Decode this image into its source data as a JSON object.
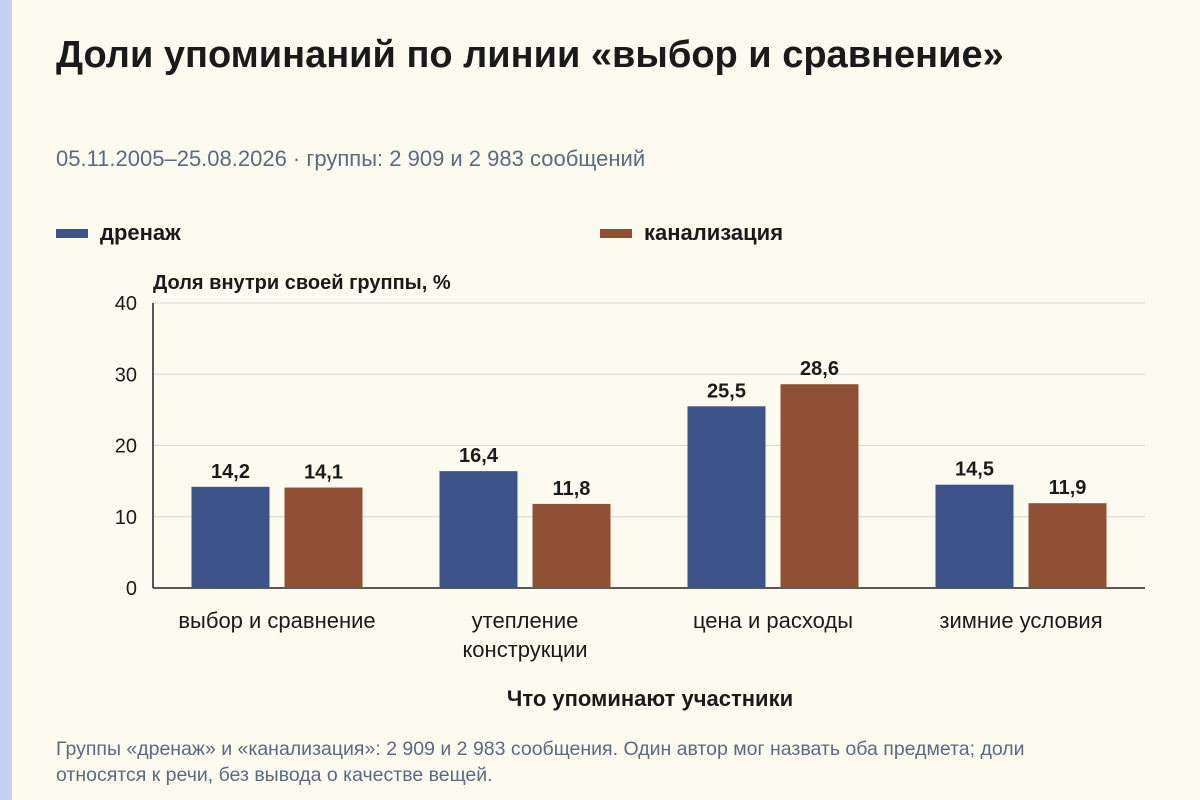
{
  "title": "Доли упоминаний по линии «выбор и сравнение»",
  "subtitle": "05.11.2005–25.08.2026 · группы: 2 909 и 2 983 сообщений",
  "footnote": "Группы «дренаж» и «канализация»: 2 909 и 2 983 сообщения. Один автор мог назвать оба предмета; доли относятся к речи, без вывода о качестве вещей.",
  "colors": {
    "background": "#fdfbf0",
    "series_1": "#3d5389",
    "series_2": "#8e4f35",
    "grid": "#d6d6d6",
    "text": "#1a1a1a"
  },
  "chart_data": {
    "type": "bar",
    "xlabel": "Что упоминают участники",
    "ylabel": "Доля внутри своей группы, %",
    "ylim": [
      0,
      40
    ],
    "yticks": [
      0,
      10,
      20,
      30,
      40
    ],
    "grid": true,
    "legend_position": "top",
    "categories": [
      [
        "выбор и сравнение"
      ],
      [
        "утепление",
        "конструкции"
      ],
      [
        "цена и расходы"
      ],
      [
        "зимние условия"
      ]
    ],
    "series": [
      {
        "name": "дренаж",
        "values": [
          14.2,
          16.4,
          25.5,
          14.5
        ],
        "labels": [
          "14,2",
          "16,4",
          "25,5",
          "14,5"
        ]
      },
      {
        "name": "канализация",
        "values": [
          14.1,
          11.8,
          28.6,
          11.9
        ],
        "labels": [
          "14,1",
          "11,8",
          "28,6",
          "11,9"
        ]
      }
    ]
  }
}
